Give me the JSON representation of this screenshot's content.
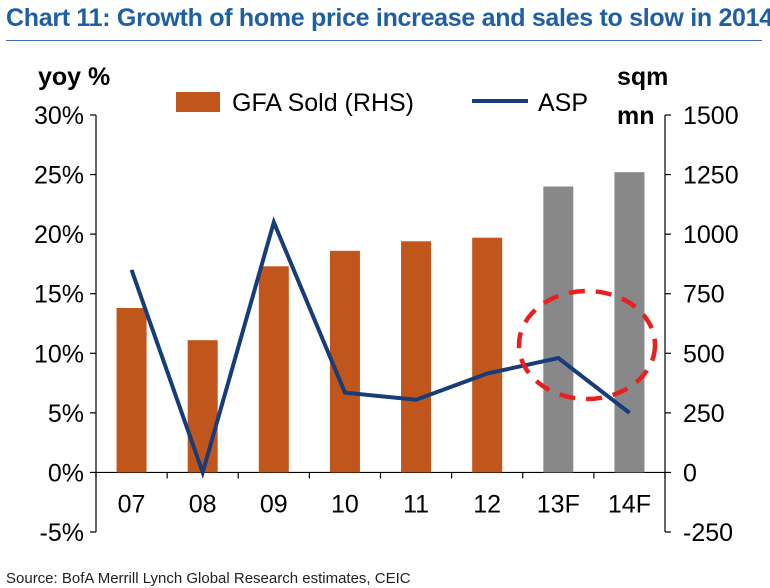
{
  "title": "Chart 11: Growth of home price increase and sales to slow in 2014",
  "source": "Source: BofA Merrill Lynch Global Research estimates, CEIC",
  "chart_data": {
    "type": "bar",
    "categories": [
      "07",
      "08",
      "09",
      "10",
      "11",
      "12",
      "13F",
      "14F"
    ],
    "left_axis": {
      "title": "yoy %",
      "range": [
        -5,
        30
      ],
      "ticks": [
        30,
        25,
        20,
        15,
        10,
        5,
        0,
        -5
      ],
      "tick_labels": [
        "30%",
        "25%",
        "20%",
        "15%",
        "10%",
        "5%",
        "0%",
        "-5%"
      ]
    },
    "right_axis": {
      "title_line1": "sqm",
      "title_line2": "mn",
      "range": [
        -250,
        1500
      ],
      "ticks": [
        1500,
        1250,
        1000,
        750,
        500,
        250,
        0,
        -250
      ],
      "tick_labels": [
        "1500",
        "1250",
        "1000",
        "750",
        "500",
        "250",
        "0",
        "-250"
      ]
    },
    "series": [
      {
        "name": "GFA Sold (RHS)",
        "kind": "bar",
        "axis": "right",
        "color": "#c0561c",
        "forecast_color": "#888888",
        "values": [
          690,
          555,
          865,
          930,
          970,
          985,
          1200,
          1260
        ]
      },
      {
        "name": "ASP",
        "kind": "line",
        "axis": "left",
        "color": "#163d7a",
        "values": [
          17,
          0,
          21,
          6.7,
          6.1,
          8.3,
          9.6,
          5
        ]
      }
    ],
    "forecast_categories": [
      "13F",
      "14F"
    ],
    "annotation": {
      "type": "dashed-ellipse",
      "color": "#e8201f"
    },
    "grid": false,
    "legend_position": "top"
  }
}
